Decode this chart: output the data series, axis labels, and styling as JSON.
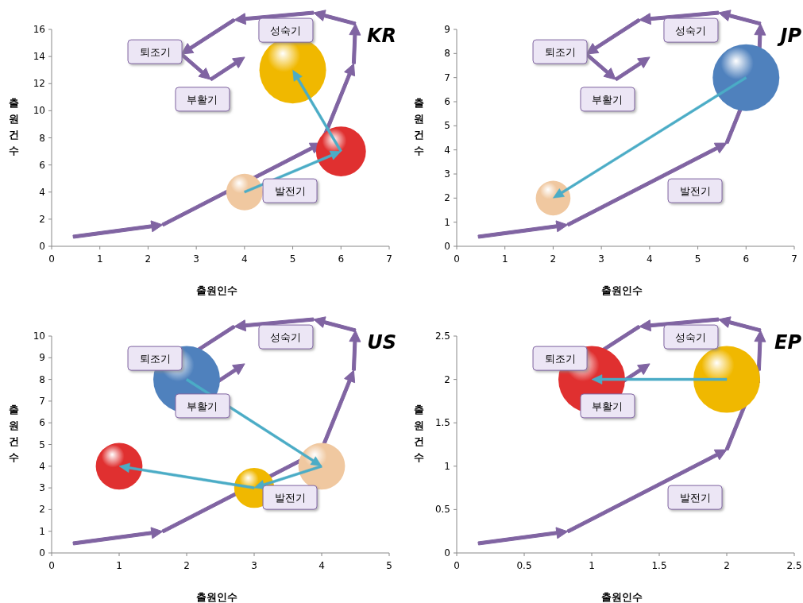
{
  "chart_data": [
    {
      "type": "bubble",
      "title": "KR",
      "xlabel": "출원인수",
      "ylabel": "출원건수",
      "xlim": [
        0,
        7
      ],
      "xticks": [
        0,
        1,
        2,
        3,
        4,
        5,
        6,
        7
      ],
      "ylim": [
        0,
        16
      ],
      "yticks": [
        0,
        2,
        4,
        6,
        8,
        10,
        12,
        14,
        16
      ],
      "annotations": [
        "퇴조기",
        "성숙기",
        "부활기",
        "발전기"
      ],
      "series": [
        {
          "type": "bubble",
          "x": [
            4,
            6,
            5
          ],
          "values": [
            4,
            7,
            13
          ],
          "sizes": [
            0.3,
            0.56,
            1
          ],
          "colors": [
            "#f0c8a0",
            "#e03030",
            "#f0b800"
          ]
        }
      ]
    },
    {
      "type": "bubble",
      "title": "JP",
      "xlabel": "출원인수",
      "ylabel": "출원건수",
      "xlim": [
        0,
        7
      ],
      "xticks": [
        0,
        1,
        2,
        3,
        4,
        5,
        6,
        7
      ],
      "ylim": [
        0,
        9
      ],
      "yticks": [
        0,
        1,
        2,
        3,
        4,
        5,
        6,
        7,
        8,
        9
      ],
      "annotations": [
        "퇴조기",
        "성숙기",
        "부활기",
        "발전기"
      ],
      "series": [
        {
          "type": "bubble",
          "x": [
            6,
            2
          ],
          "values": [
            7,
            2
          ],
          "sizes": [
            1,
            0.27
          ],
          "colors": [
            "#4f81bd",
            "#f0c8a0"
          ]
        }
      ]
    },
    {
      "type": "bubble",
      "title": "US",
      "xlabel": "출원인수",
      "ylabel": "출원건수",
      "xlim": [
        0,
        5
      ],
      "xticks": [
        0,
        1,
        2,
        3,
        4,
        5
      ],
      "ylim": [
        0,
        10
      ],
      "yticks": [
        0,
        1,
        2,
        3,
        4,
        5,
        6,
        7,
        8,
        9,
        10
      ],
      "annotations": [
        "퇴조기",
        "성숙기",
        "부활기",
        "발전기"
      ],
      "series": [
        {
          "type": "bubble",
          "x": [
            2,
            4,
            3,
            1
          ],
          "values": [
            8,
            4,
            3,
            4
          ],
          "sizes": [
            1,
            0.49,
            0.36,
            0.49
          ],
          "colors": [
            "#4f81bd",
            "#f0c8a0",
            "#f0b800",
            "#e03030"
          ]
        }
      ]
    },
    {
      "type": "bubble",
      "title": "EP",
      "xlabel": "출원인수",
      "ylabel": "출원건수",
      "xlim": [
        0,
        2.5
      ],
      "xticks": [
        0,
        0.5,
        1,
        1.5,
        2,
        2.5
      ],
      "ylim": [
        0,
        2.5
      ],
      "yticks": [
        0,
        0.5,
        1,
        1.5,
        2,
        2.5
      ],
      "annotations": [
        "퇴조기",
        "성숙기",
        "부활기",
        "발전기"
      ],
      "series": [
        {
          "type": "bubble",
          "x": [
            2,
            1
          ],
          "values": [
            2,
            2
          ],
          "sizes": [
            1,
            1
          ],
          "colors": [
            "#f0b800",
            "#e03030"
          ]
        }
      ]
    }
  ]
}
